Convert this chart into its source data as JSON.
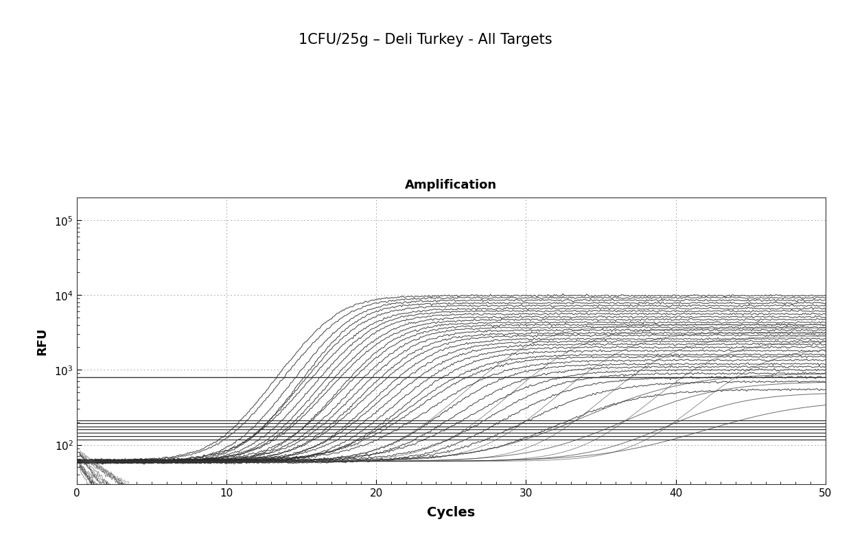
{
  "title": "1CFU/25g – Deli Turkey - All Targets",
  "plot_title": "Amplification",
  "xlabel": "Cycles",
  "ylabel": "RFU",
  "xlim": [
    0,
    50
  ],
  "ylim_log": [
    30,
    200000
  ],
  "x_ticks": [
    0,
    10,
    20,
    30,
    40,
    50
  ],
  "bg_color": "#ffffff",
  "flat_line_high": 800,
  "flat_lines_low": [
    210,
    195,
    175,
    160,
    145,
    130,
    118
  ],
  "sigmoid_midpoints": [
    17.0,
    17.5,
    18.0,
    18.3,
    18.6,
    19.0,
    19.3,
    19.6,
    20.0,
    20.3,
    20.7,
    21.0,
    21.4,
    21.8,
    22.2,
    22.6,
    23.0,
    23.5,
    24.0,
    24.5,
    25.0,
    25.5,
    26.0,
    26.8,
    27.5,
    28.5,
    29.5,
    30.5,
    31.5,
    33.0,
    35.0
  ],
  "sigmoid_plateaus": [
    9800,
    9200,
    8500,
    7800,
    7200,
    6600,
    6100,
    5600,
    5100,
    4700,
    4300,
    4000,
    3700,
    3400,
    3100,
    2900,
    2600,
    2400,
    2200,
    2000,
    1800,
    1600,
    1500,
    1350,
    1200,
    1100,
    1000,
    900,
    800,
    700,
    550
  ],
  "sigmoid_steepness": [
    0.7,
    0.68,
    0.72,
    0.7,
    0.68,
    0.65,
    0.67,
    0.66,
    0.64,
    0.65,
    0.63,
    0.62,
    0.61,
    0.6,
    0.59,
    0.58,
    0.57,
    0.56,
    0.55,
    0.54,
    0.53,
    0.52,
    0.5,
    0.49,
    0.48,
    0.46,
    0.45,
    0.44,
    0.43,
    0.42,
    0.4
  ],
  "n_declining": 15,
  "extra_late_midpoints": [
    38,
    40,
    42,
    45
  ],
  "extra_late_plateaus": [
    900,
    700,
    500,
    400
  ]
}
